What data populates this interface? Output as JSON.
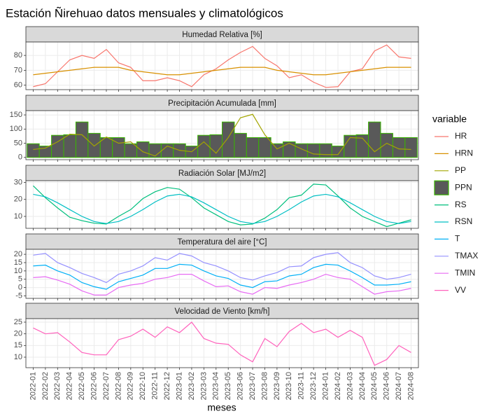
{
  "title": "Estación Ñirehuao datos mensuales y climatológicos",
  "x_label": "meses",
  "legend_title": "variable",
  "categories": [
    "2022-01",
    "2022-02",
    "2022-03",
    "2022-04",
    "2022-05",
    "2022-06",
    "2022-07",
    "2022-08",
    "2022-09",
    "2022-10",
    "2022-11",
    "2022-12",
    "2023-01",
    "2023-02",
    "2023-03",
    "2023-04",
    "2023-05",
    "2023-06",
    "2023-07",
    "2023-08",
    "2023-09",
    "2023-10",
    "2023-11",
    "2023-12",
    "2024-01",
    "2024-02",
    "2024-03",
    "2024-04",
    "2024-05",
    "2024-06",
    "2024-07",
    "2024-08"
  ],
  "chart_data": [
    {
      "type": "line",
      "title": "Humedad Relativa [%]",
      "ylim": [
        57,
        89
      ],
      "yticks": [
        60,
        70,
        80
      ],
      "grid": true,
      "series": [
        {
          "name": "HR",
          "type": "line",
          "color": "#F8766D",
          "values": [
            59,
            61,
            69,
            77,
            80,
            78,
            84,
            75,
            72,
            63,
            63,
            65,
            63,
            59,
            67,
            71,
            77,
            82,
            86,
            78,
            73,
            65,
            67,
            62,
            58.5,
            59,
            69,
            71,
            83,
            87,
            79,
            78
          ]
        },
        {
          "name": "HRN",
          "type": "line",
          "color": "#D89000",
          "values": [
            67,
            68,
            69,
            70,
            71,
            72,
            72,
            72,
            70,
            69,
            68,
            67,
            67,
            68,
            69,
            70,
            71,
            72,
            72,
            72,
            70,
            69,
            68,
            67,
            67,
            68,
            69,
            70,
            71,
            72,
            72,
            72
          ]
        }
      ]
    },
    {
      "type": "line",
      "title": "Precipitación Acumulada [mm]",
      "ylim": [
        -8,
        165
      ],
      "yticks": [
        0,
        50,
        100,
        150
      ],
      "grid": true,
      "series": [
        {
          "name": "PP",
          "type": "line",
          "color": "#A3A500",
          "values": [
            28,
            33,
            55,
            82,
            80,
            40,
            72,
            50,
            55,
            20,
            5,
            40,
            25,
            20,
            55,
            15,
            70,
            140,
            152,
            80,
            30,
            50,
            30,
            12,
            10,
            10,
            70,
            68,
            20,
            50,
            30,
            28
          ]
        },
        {
          "name": "PPN",
          "type": "bar",
          "color": "#39B600",
          "fill": "#595959",
          "values": [
            48,
            40,
            78,
            80,
            125,
            85,
            70,
            70,
            48,
            55,
            48,
            48,
            48,
            40,
            78,
            80,
            125,
            85,
            70,
            70,
            48,
            55,
            48,
            48,
            48,
            40,
            78,
            80,
            125,
            85,
            70,
            70
          ]
        }
      ]
    },
    {
      "type": "line",
      "title": "Radiación Solar [MJ/m2]",
      "ylim": [
        3,
        31
      ],
      "yticks": [
        10,
        20,
        30
      ],
      "grid": true,
      "series": [
        {
          "name": "RS",
          "type": "line",
          "color": "#00BF7D",
          "values": [
            28,
            21,
            15,
            9.5,
            7.5,
            6,
            5.5,
            10,
            14,
            20.5,
            24.5,
            27,
            26,
            21,
            15,
            11,
            7,
            5,
            5.5,
            9,
            14,
            21,
            22.5,
            29,
            28.5,
            22,
            15,
            10,
            7,
            4,
            6,
            8
          ]
        },
        {
          "name": "RSN",
          "type": "line",
          "color": "#00BFC4",
          "values": [
            23,
            21.5,
            18,
            14,
            10,
            7,
            5.8,
            7,
            10,
            14,
            18.5,
            22,
            23,
            21.5,
            18,
            14,
            10,
            7,
            5.8,
            7,
            10,
            14,
            18.5,
            22,
            23,
            21.5,
            18,
            14,
            10,
            7,
            5.8,
            7
          ]
        }
      ]
    },
    {
      "type": "line",
      "title": "Temperatura del aire [°C]",
      "ylim": [
        -6.5,
        23
      ],
      "yticks": [
        -5,
        0,
        5,
        10,
        15,
        20
      ],
      "grid": true,
      "series": [
        {
          "name": "T",
          "type": "line",
          "color": "#00B0F6",
          "values": [
            13,
            13.5,
            10,
            7.5,
            3,
            0.5,
            -1,
            3.5,
            5.5,
            7.5,
            11.5,
            11.5,
            14,
            13.5,
            10,
            7,
            5.5,
            1.5,
            0,
            3.5,
            4,
            7,
            8,
            12,
            14,
            13.5,
            10,
            6,
            1.5,
            1.5,
            2,
            3.5
          ]
        },
        {
          "name": "TMAX",
          "type": "line",
          "color": "#9590FF",
          "values": [
            19.5,
            20.5,
            15,
            12,
            8.5,
            6,
            3,
            8,
            10,
            13,
            18,
            16.5,
            20.5,
            19,
            15,
            13,
            10,
            6,
            4.5,
            7,
            9,
            12.5,
            13,
            18,
            20,
            21,
            15,
            12,
            7,
            5,
            6,
            8
          ]
        },
        {
          "name": "TMIN",
          "type": "line",
          "color": "#E76BF3",
          "values": [
            6,
            6.5,
            4.5,
            2,
            -2,
            -4.5,
            -4.5,
            0,
            1.5,
            2.5,
            5,
            6,
            8,
            8,
            4,
            0.5,
            1,
            -2.5,
            -4,
            0,
            -0.5,
            1.5,
            3,
            5,
            8,
            6,
            5,
            0.5,
            -4,
            -2.5,
            -2,
            -0.5
          ]
        }
      ]
    },
    {
      "type": "line",
      "title": "Velocidad de Viento [km/h]",
      "ylim": [
        5.5,
        26.5
      ],
      "yticks": [
        10,
        15,
        20,
        25
      ],
      "grid": true,
      "series": [
        {
          "name": "VV",
          "type": "line",
          "color": "#FF62BC",
          "values": [
            22.5,
            20,
            20.5,
            16.5,
            12,
            11,
            11,
            17.5,
            19,
            22,
            18.5,
            23,
            20.5,
            25,
            18,
            16,
            15.5,
            11,
            8,
            18,
            14.5,
            21,
            24.5,
            20.5,
            22,
            18.5,
            21.5,
            18.5,
            6.5,
            9,
            15,
            12
          ]
        }
      ]
    }
  ]
}
